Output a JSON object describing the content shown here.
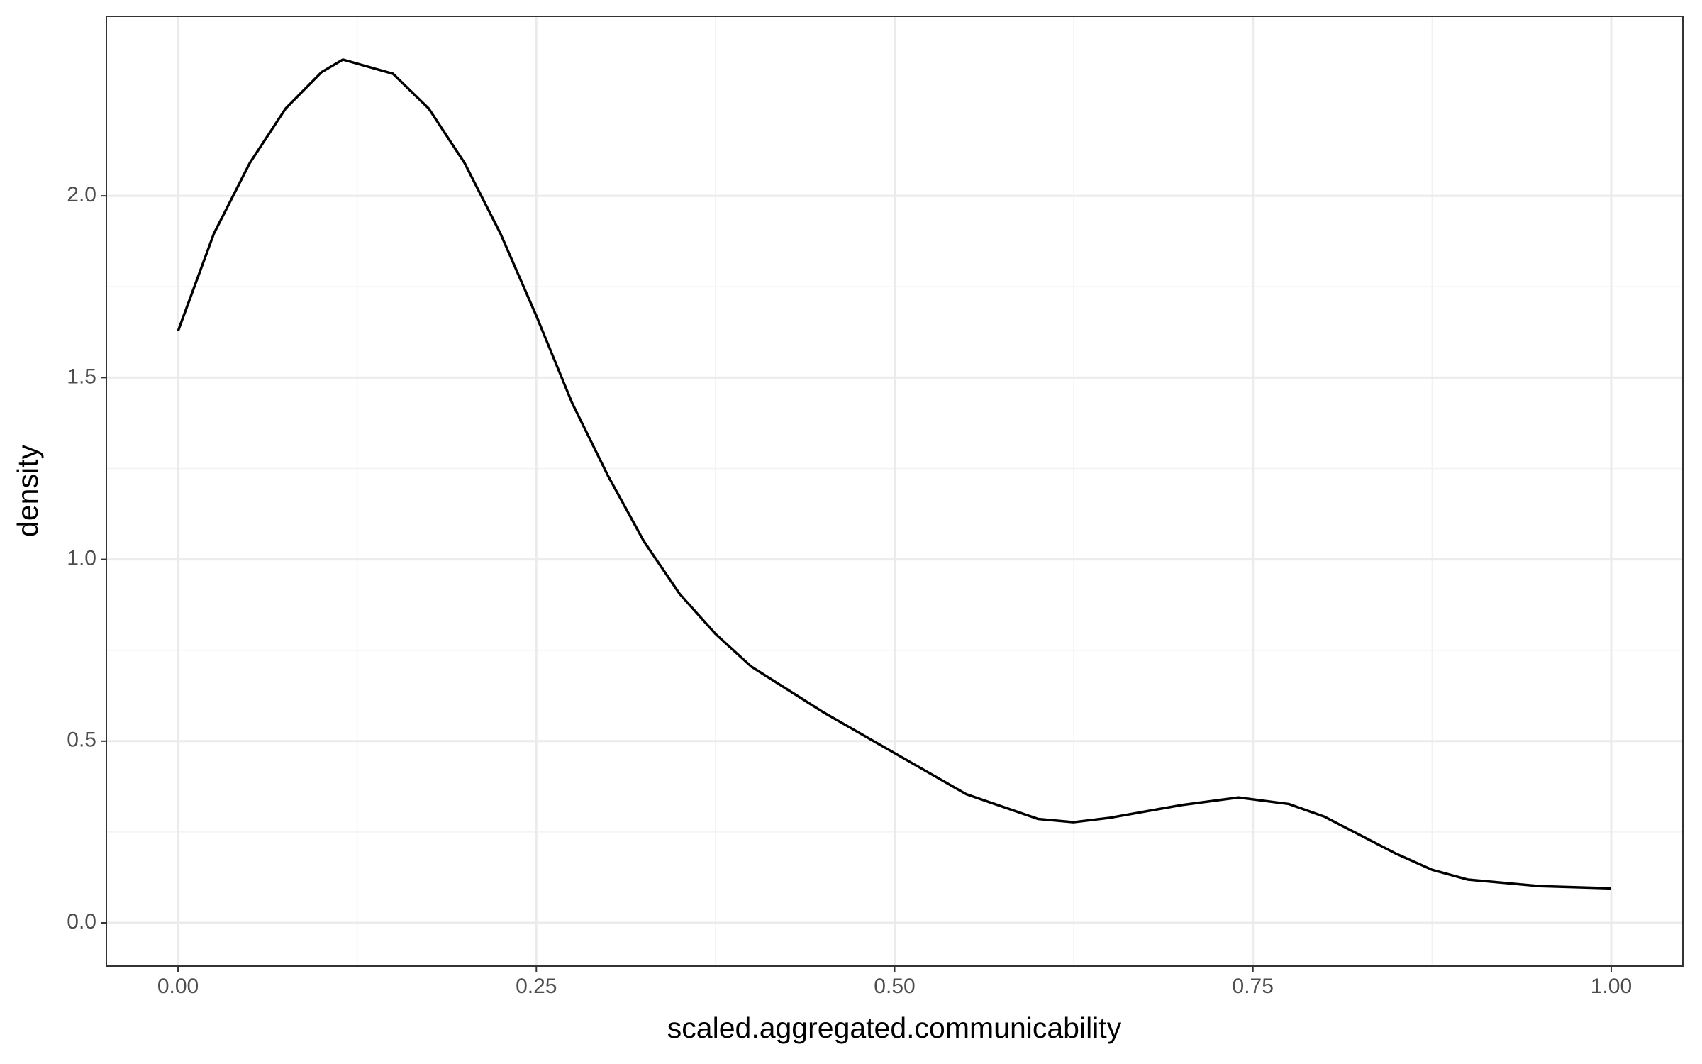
{
  "chart_data": {
    "type": "line",
    "x_label": "scaled.aggregated.communicability",
    "y_label": "density",
    "x": [
      0,
      0.025,
      0.05,
      0.075,
      0.1,
      0.115,
      0.15,
      0.175,
      0.2,
      0.225,
      0.25,
      0.275,
      0.3,
      0.325,
      0.35,
      0.375,
      0.4,
      0.45,
      0.5,
      0.55,
      0.6,
      0.625,
      0.65,
      0.7,
      0.74,
      0.775,
      0.8,
      0.85,
      0.875,
      0.9,
      0.95,
      1.0
    ],
    "series": [
      {
        "color": "#000000",
        "values": [
          1.628,
          1.896,
          2.09,
          2.24,
          2.34,
          2.375,
          2.336,
          2.24,
          2.09,
          1.896,
          1.67,
          1.43,
          1.23,
          1.05,
          0.905,
          0.795,
          0.705,
          0.58,
          0.467,
          0.354,
          0.286,
          0.277,
          0.289,
          0.324,
          0.345,
          0.327,
          0.292,
          0.19,
          0.146,
          0.119,
          0.101,
          0.095
        ]
      }
    ],
    "xlim": [
      -0.05,
      1.05
    ],
    "ylim": [
      -0.119,
      2.494
    ],
    "xticks": [
      {
        "value": 0,
        "label": "0.00"
      },
      {
        "value": 0.25,
        "label": "0.25"
      },
      {
        "value": 0.5,
        "label": "0.50"
      },
      {
        "value": 0.75,
        "label": "0.75"
      },
      {
        "value": 1,
        "label": "1.00"
      }
    ],
    "yticks": [
      {
        "value": 0,
        "label": "0.0"
      },
      {
        "value": 0.5,
        "label": "0.5"
      },
      {
        "value": 1,
        "label": "1.0"
      },
      {
        "value": 1.5,
        "label": "1.5"
      },
      {
        "value": 2,
        "label": "2.0"
      }
    ],
    "grid": true
  }
}
